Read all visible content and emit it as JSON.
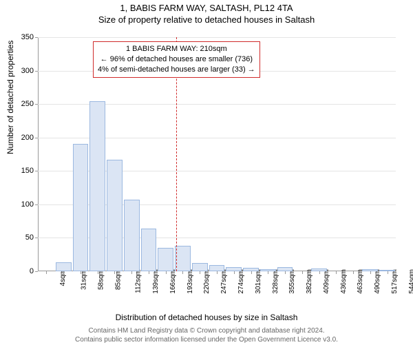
{
  "title_line1": "1, BABIS FARM WAY, SALTASH, PL12 4TA",
  "title_line2": "Size of property relative to detached houses in Saltash",
  "y_axis_title": "Number of detached properties",
  "x_axis_title": "Distribution of detached houses by size in Saltash",
  "footer_line1": "Contains HM Land Registry data © Crown copyright and database right 2024.",
  "footer_line2": "Contains public sector information licensed under the Open Government Licence v3.0.",
  "chart": {
    "type": "histogram",
    "ylim": [
      0,
      350
    ],
    "ytick_step": 50,
    "bar_fill": "#dbe5f4",
    "bar_stroke": "#9bb8e0",
    "grid_color": "#e4e4e4",
    "background_color": "#ffffff",
    "ref_line_value": 210,
    "ref_line_color": "#d02a2a",
    "x_categories": [
      "4sqm",
      "31sqm",
      "58sqm",
      "85sqm",
      "112sqm",
      "139sqm",
      "166sqm",
      "193sqm",
      "220sqm",
      "247sqm",
      "274sqm",
      "301sqm",
      "328sqm",
      "355sqm",
      "382sqm",
      "409sqm",
      "436sqm",
      "463sqm",
      "490sqm",
      "517sqm",
      "544sqm"
    ],
    "values": [
      0,
      13,
      190,
      254,
      167,
      107,
      64,
      35,
      38,
      12,
      9,
      6,
      5,
      3,
      6,
      0,
      4,
      0,
      0,
      3,
      2
    ],
    "bar_width_ratio": 0.92
  },
  "info_box": {
    "line1": "1 BABIS FARM WAY: 210sqm",
    "line2": "← 96% of detached houses are smaller (736)",
    "line3": "4% of semi-detached houses are larger (33) →"
  }
}
